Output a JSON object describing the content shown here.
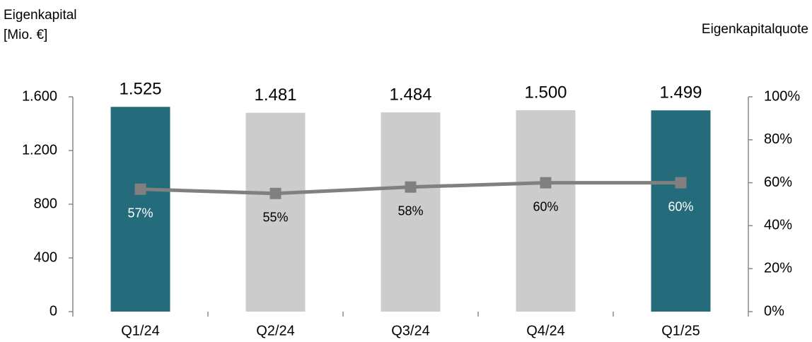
{
  "chart_data": {
    "type": "bar-line",
    "y_label_lines": [
      "Eigenkapital",
      "[Mio. €]"
    ],
    "y2_label": "Eigenkapitalquote",
    "categories": [
      "Q1/24",
      "Q2/24",
      "Q3/24",
      "Q4/24",
      "Q1/25"
    ],
    "series": [
      {
        "type": "bar",
        "values": [
          1525,
          1481,
          1484,
          1500,
          1499
        ],
        "value_labels": [
          "1.525",
          "1.481",
          "1.484",
          "1.500",
          "1.499"
        ],
        "colors": [
          "#246b7c",
          "#cccccc",
          "#cccccc",
          "#cccccc",
          "#246b7c"
        ]
      },
      {
        "type": "line",
        "axis": "y2",
        "color": "#808080",
        "values": [
          57,
          55,
          58,
          60,
          60
        ],
        "value_labels": [
          "57%",
          "55%",
          "58%",
          "60%",
          "60%"
        ],
        "value_label_colors": [
          "#ffffff",
          "#000000",
          "#000000",
          "#000000",
          "#ffffff"
        ]
      }
    ],
    "ylim": [
      0,
      1600
    ],
    "yticks": [
      0,
      400,
      800,
      {
        "value": 1200,
        "label": "1.200"
      },
      {
        "value": 1600,
        "label": "1.600"
      }
    ],
    "y2lim": [
      0,
      100
    ],
    "y2ticks": [
      {
        "value": 0,
        "label": "0%"
      },
      {
        "value": 20,
        "label": "20%"
      },
      {
        "value": 40,
        "label": "40%"
      },
      {
        "value": 60,
        "label": "60%"
      },
      {
        "value": 80,
        "label": "80%"
      },
      {
        "value": 100,
        "label": "100%"
      }
    ]
  }
}
